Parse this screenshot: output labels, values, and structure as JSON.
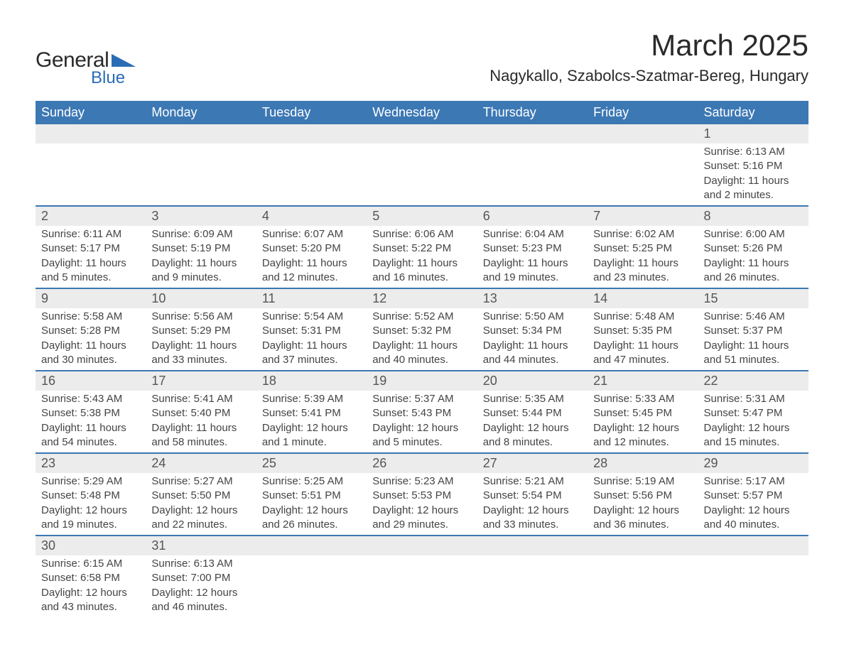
{
  "brand": {
    "text_general": "General",
    "text_blue": "Blue",
    "triangle_color": "#2a6db5"
  },
  "title": "March 2025",
  "location": "Nagykallo, Szabolcs-Szatmar-Bereg, Hungary",
  "colors": {
    "header_bg": "#3c78b4",
    "header_text": "#ffffff",
    "daynum_bg": "#ececec",
    "row_border": "#3c78b4",
    "body_text": "#444444",
    "page_bg": "#ffffff"
  },
  "layout": {
    "columns": 7,
    "type": "calendar-table"
  },
  "weekdays": [
    "Sunday",
    "Monday",
    "Tuesday",
    "Wednesday",
    "Thursday",
    "Friday",
    "Saturday"
  ],
  "weeks": [
    [
      null,
      null,
      null,
      null,
      null,
      null,
      {
        "n": "1",
        "sunrise": "Sunrise: 6:13 AM",
        "sunset": "Sunset: 5:16 PM",
        "day1": "Daylight: 11 hours",
        "day2": "and 2 minutes."
      }
    ],
    [
      {
        "n": "2",
        "sunrise": "Sunrise: 6:11 AM",
        "sunset": "Sunset: 5:17 PM",
        "day1": "Daylight: 11 hours",
        "day2": "and 5 minutes."
      },
      {
        "n": "3",
        "sunrise": "Sunrise: 6:09 AM",
        "sunset": "Sunset: 5:19 PM",
        "day1": "Daylight: 11 hours",
        "day2": "and 9 minutes."
      },
      {
        "n": "4",
        "sunrise": "Sunrise: 6:07 AM",
        "sunset": "Sunset: 5:20 PM",
        "day1": "Daylight: 11 hours",
        "day2": "and 12 minutes."
      },
      {
        "n": "5",
        "sunrise": "Sunrise: 6:06 AM",
        "sunset": "Sunset: 5:22 PM",
        "day1": "Daylight: 11 hours",
        "day2": "and 16 minutes."
      },
      {
        "n": "6",
        "sunrise": "Sunrise: 6:04 AM",
        "sunset": "Sunset: 5:23 PM",
        "day1": "Daylight: 11 hours",
        "day2": "and 19 minutes."
      },
      {
        "n": "7",
        "sunrise": "Sunrise: 6:02 AM",
        "sunset": "Sunset: 5:25 PM",
        "day1": "Daylight: 11 hours",
        "day2": "and 23 minutes."
      },
      {
        "n": "8",
        "sunrise": "Sunrise: 6:00 AM",
        "sunset": "Sunset: 5:26 PM",
        "day1": "Daylight: 11 hours",
        "day2": "and 26 minutes."
      }
    ],
    [
      {
        "n": "9",
        "sunrise": "Sunrise: 5:58 AM",
        "sunset": "Sunset: 5:28 PM",
        "day1": "Daylight: 11 hours",
        "day2": "and 30 minutes."
      },
      {
        "n": "10",
        "sunrise": "Sunrise: 5:56 AM",
        "sunset": "Sunset: 5:29 PM",
        "day1": "Daylight: 11 hours",
        "day2": "and 33 minutes."
      },
      {
        "n": "11",
        "sunrise": "Sunrise: 5:54 AM",
        "sunset": "Sunset: 5:31 PM",
        "day1": "Daylight: 11 hours",
        "day2": "and 37 minutes."
      },
      {
        "n": "12",
        "sunrise": "Sunrise: 5:52 AM",
        "sunset": "Sunset: 5:32 PM",
        "day1": "Daylight: 11 hours",
        "day2": "and 40 minutes."
      },
      {
        "n": "13",
        "sunrise": "Sunrise: 5:50 AM",
        "sunset": "Sunset: 5:34 PM",
        "day1": "Daylight: 11 hours",
        "day2": "and 44 minutes."
      },
      {
        "n": "14",
        "sunrise": "Sunrise: 5:48 AM",
        "sunset": "Sunset: 5:35 PM",
        "day1": "Daylight: 11 hours",
        "day2": "and 47 minutes."
      },
      {
        "n": "15",
        "sunrise": "Sunrise: 5:46 AM",
        "sunset": "Sunset: 5:37 PM",
        "day1": "Daylight: 11 hours",
        "day2": "and 51 minutes."
      }
    ],
    [
      {
        "n": "16",
        "sunrise": "Sunrise: 5:43 AM",
        "sunset": "Sunset: 5:38 PM",
        "day1": "Daylight: 11 hours",
        "day2": "and 54 minutes."
      },
      {
        "n": "17",
        "sunrise": "Sunrise: 5:41 AM",
        "sunset": "Sunset: 5:40 PM",
        "day1": "Daylight: 11 hours",
        "day2": "and 58 minutes."
      },
      {
        "n": "18",
        "sunrise": "Sunrise: 5:39 AM",
        "sunset": "Sunset: 5:41 PM",
        "day1": "Daylight: 12 hours",
        "day2": "and 1 minute."
      },
      {
        "n": "19",
        "sunrise": "Sunrise: 5:37 AM",
        "sunset": "Sunset: 5:43 PM",
        "day1": "Daylight: 12 hours",
        "day2": "and 5 minutes."
      },
      {
        "n": "20",
        "sunrise": "Sunrise: 5:35 AM",
        "sunset": "Sunset: 5:44 PM",
        "day1": "Daylight: 12 hours",
        "day2": "and 8 minutes."
      },
      {
        "n": "21",
        "sunrise": "Sunrise: 5:33 AM",
        "sunset": "Sunset: 5:45 PM",
        "day1": "Daylight: 12 hours",
        "day2": "and 12 minutes."
      },
      {
        "n": "22",
        "sunrise": "Sunrise: 5:31 AM",
        "sunset": "Sunset: 5:47 PM",
        "day1": "Daylight: 12 hours",
        "day2": "and 15 minutes."
      }
    ],
    [
      {
        "n": "23",
        "sunrise": "Sunrise: 5:29 AM",
        "sunset": "Sunset: 5:48 PM",
        "day1": "Daylight: 12 hours",
        "day2": "and 19 minutes."
      },
      {
        "n": "24",
        "sunrise": "Sunrise: 5:27 AM",
        "sunset": "Sunset: 5:50 PM",
        "day1": "Daylight: 12 hours",
        "day2": "and 22 minutes."
      },
      {
        "n": "25",
        "sunrise": "Sunrise: 5:25 AM",
        "sunset": "Sunset: 5:51 PM",
        "day1": "Daylight: 12 hours",
        "day2": "and 26 minutes."
      },
      {
        "n": "26",
        "sunrise": "Sunrise: 5:23 AM",
        "sunset": "Sunset: 5:53 PM",
        "day1": "Daylight: 12 hours",
        "day2": "and 29 minutes."
      },
      {
        "n": "27",
        "sunrise": "Sunrise: 5:21 AM",
        "sunset": "Sunset: 5:54 PM",
        "day1": "Daylight: 12 hours",
        "day2": "and 33 minutes."
      },
      {
        "n": "28",
        "sunrise": "Sunrise: 5:19 AM",
        "sunset": "Sunset: 5:56 PM",
        "day1": "Daylight: 12 hours",
        "day2": "and 36 minutes."
      },
      {
        "n": "29",
        "sunrise": "Sunrise: 5:17 AM",
        "sunset": "Sunset: 5:57 PM",
        "day1": "Daylight: 12 hours",
        "day2": "and 40 minutes."
      }
    ],
    [
      {
        "n": "30",
        "sunrise": "Sunrise: 6:15 AM",
        "sunset": "Sunset: 6:58 PM",
        "day1": "Daylight: 12 hours",
        "day2": "and 43 minutes."
      },
      {
        "n": "31",
        "sunrise": "Sunrise: 6:13 AM",
        "sunset": "Sunset: 7:00 PM",
        "day1": "Daylight: 12 hours",
        "day2": "and 46 minutes."
      },
      null,
      null,
      null,
      null,
      null
    ]
  ]
}
